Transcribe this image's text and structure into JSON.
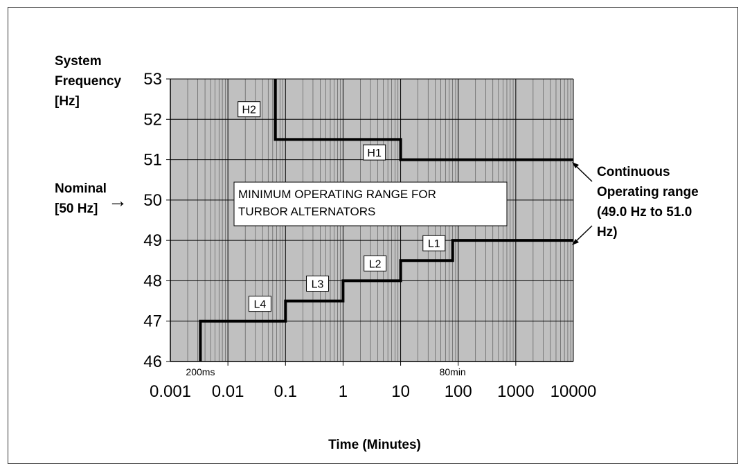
{
  "chart_data": {
    "type": "line",
    "title": "MINIMUM OPERATING RANGE FOR TURBOR ALTERNATORS",
    "ylabel": [
      "System",
      "Frequency",
      "[Hz]"
    ],
    "xlabel": "Time (Minutes)",
    "x_scale": "log",
    "xlim": [
      0.001,
      10000
    ],
    "ylim": [
      46,
      53
    ],
    "x_ticks": [
      "0.001",
      "0.01",
      "0.1",
      "1",
      "10",
      "100",
      "1000",
      "10000"
    ],
    "y_ticks": [
      "46",
      "47",
      "48",
      "49",
      "50",
      "51",
      "52",
      "53"
    ],
    "grid": true,
    "background": "#c0c0c0",
    "series": [
      {
        "color": "#000000",
        "x": [
          0.06667,
          0.06667,
          10,
          10,
          10000
        ],
        "y": [
          53,
          51.5,
          51.5,
          51,
          51
        ]
      },
      {
        "color": "#000000",
        "x": [
          0.00333,
          0.00333,
          0.1,
          0.1,
          1,
          1,
          10,
          10,
          80,
          80,
          10000
        ],
        "y": [
          46,
          47,
          47,
          47.5,
          47.5,
          48,
          48,
          48.5,
          48.5,
          49,
          49
        ]
      }
    ],
    "step_labels": [
      {
        "text": "H2",
        "x": 0.0233,
        "y": 52.25
      },
      {
        "text": "H1",
        "x": 3.5,
        "y": 51.18
      },
      {
        "text": "L1",
        "x": 38,
        "y": 48.93
      },
      {
        "text": "L2",
        "x": 3.6,
        "y": 48.43
      },
      {
        "text": "L3",
        "x": 0.36,
        "y": 47.93
      },
      {
        "text": "L4",
        "x": 0.036,
        "y": 47.43
      }
    ],
    "x_annotations": [
      {
        "text": "200ms",
        "x": 0.00333
      },
      {
        "text": "80min",
        "x": 80
      }
    ],
    "annotations": {
      "nominal": [
        "Nominal",
        "[50 Hz]"
      ],
      "nominal_arrow": "→",
      "continuous": [
        "Continuous",
        "Operating range",
        "(49.0 Hz to 51.0",
        "Hz)"
      ]
    }
  }
}
